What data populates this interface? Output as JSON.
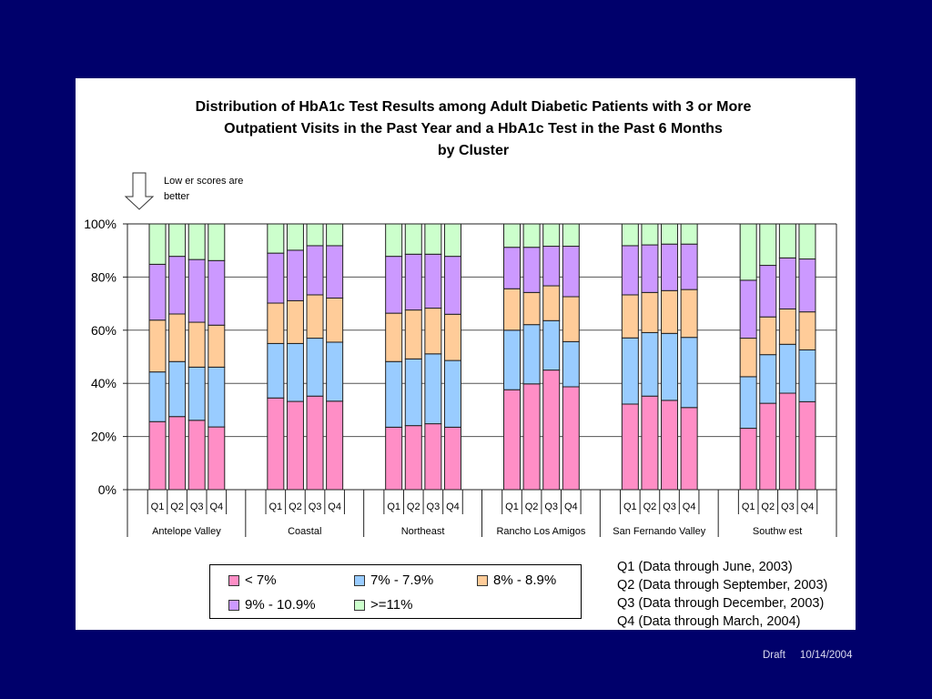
{
  "footer": {
    "status": "Draft",
    "date": "10/14/2004"
  },
  "annotation": {
    "line1": "Low er scores are",
    "line2": "better",
    "icon": "down-arrow-icon"
  },
  "quarter_notes": [
    "Q1 (Data through June, 2003)",
    "Q2 (Data through September, 2003)",
    "Q3 (Data through December, 2003)",
    "Q4 (Data through March, 2004)"
  ],
  "colors": {
    "background": "#00006b",
    "lt7": "#ff8ec6",
    "7to7_9": "#99ccff",
    "8to8_9": "#ffcc99",
    "9to10_9": "#cc99ff",
    "ge11": "#ccffcc"
  },
  "chart_data": {
    "type": "bar",
    "stacked": true,
    "title_lines": [
      "Distribution of HbA1c Test Results among Adult Diabetic Patients with 3 or More",
      "Outpatient Visits in the Past Year and a HbA1c Test in the Past 6 Months",
      "by Cluster"
    ],
    "xlabel": "",
    "ylabel": "",
    "ylim": [
      0,
      100
    ],
    "yticks": [
      "0%",
      "20%",
      "40%",
      "60%",
      "80%",
      "100%"
    ],
    "ytick_values": [
      0,
      20,
      40,
      60,
      80,
      100
    ],
    "grid": true,
    "legend_position": "bottom-left",
    "groups": [
      "Antelope Valley",
      "Coastal",
      "Northeast",
      "Rancho Los Amigos",
      "San Fernando Valley",
      "Southw est"
    ],
    "subcategories": [
      "Q1",
      "Q2",
      "Q3",
      "Q4"
    ],
    "series": [
      {
        "name": "< 7%",
        "color": "#ff8ec6",
        "values": [
          [
            25.6,
            27.5,
            26.1,
            23.6
          ],
          [
            34.5,
            33.2,
            35.2,
            33.3
          ],
          [
            23.5,
            24.1,
            24.8,
            23.5
          ],
          [
            37.6,
            39.8,
            45.0,
            38.7
          ],
          [
            32.2,
            35.2,
            33.6,
            30.9
          ],
          [
            23.1,
            32.5,
            36.3,
            33.1
          ]
        ]
      },
      {
        "name": "7% - 7.9%",
        "color": "#99ccff",
        "values": [
          [
            18.7,
            20.7,
            20.0,
            22.5
          ],
          [
            20.5,
            21.8,
            21.8,
            22.2
          ],
          [
            24.7,
            25.1,
            26.3,
            25.1
          ],
          [
            22.4,
            22.3,
            18.6,
            17.0
          ],
          [
            24.9,
            23.9,
            25.2,
            26.4
          ],
          [
            19.4,
            18.3,
            18.4,
            19.5
          ]
        ]
      },
      {
        "name": "8% - 8.9%",
        "color": "#ffcc99",
        "values": [
          [
            19.5,
            17.9,
            16.9,
            15.8
          ],
          [
            15.2,
            16.1,
            16.3,
            16.6
          ],
          [
            18.2,
            18.4,
            17.2,
            17.4
          ],
          [
            15.6,
            12.1,
            13.1,
            16.9
          ],
          [
            16.2,
            15.1,
            16.1,
            18.0
          ],
          [
            14.5,
            14.2,
            13.3,
            14.3
          ]
        ]
      },
      {
        "name": "9% - 10.9%",
        "color": "#cc99ff",
        "values": [
          [
            21.0,
            21.7,
            23.6,
            24.3
          ],
          [
            18.8,
            19.0,
            18.5,
            19.7
          ],
          [
            21.4,
            21.0,
            20.3,
            21.8
          ],
          [
            15.6,
            17.0,
            14.9,
            19.0
          ],
          [
            18.5,
            17.9,
            17.5,
            17.1
          ],
          [
            21.8,
            19.4,
            19.2,
            19.9
          ]
        ]
      },
      {
        "name": ">=11%",
        "color": "#ccffcc",
        "values": [
          [
            15.2,
            12.2,
            13.4,
            13.8
          ],
          [
            11.0,
            9.9,
            8.2,
            8.2
          ],
          [
            12.2,
            11.4,
            11.4,
            12.2
          ],
          [
            8.8,
            8.8,
            8.4,
            8.4
          ],
          [
            8.2,
            7.9,
            7.6,
            7.6
          ],
          [
            21.2,
            15.6,
            12.8,
            13.2
          ]
        ]
      }
    ]
  }
}
